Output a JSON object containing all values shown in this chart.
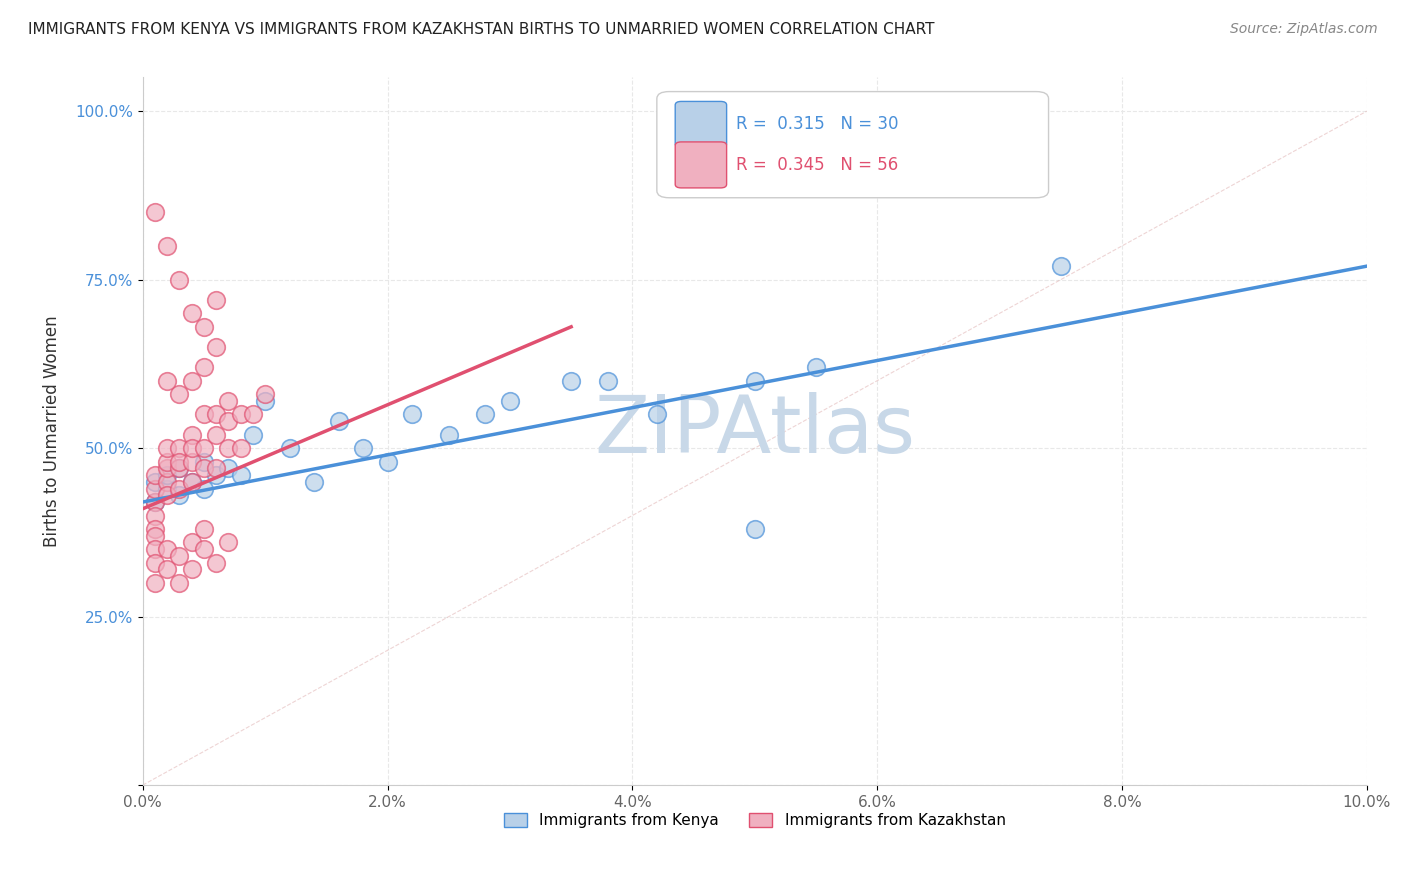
{
  "title": "IMMIGRANTS FROM KENYA VS IMMIGRANTS FROM KAZAKHSTAN BIRTHS TO UNMARRIED WOMEN CORRELATION CHART",
  "source": "Source: ZipAtlas.com",
  "ylabel": "Births to Unmarried Women",
  "legend_label1": "Immigrants from Kenya",
  "legend_label2": "Immigrants from Kazakhstan",
  "R1": 0.315,
  "N1": 30,
  "R2": 0.345,
  "N2": 56,
  "color1": "#b8d0e8",
  "color2": "#f0b0c0",
  "line_color1": "#4a90d9",
  "line_color2": "#e05070",
  "xlim": [
    0.0,
    0.1
  ],
  "ylim": [
    0.0,
    1.05
  ],
  "xticks": [
    0.0,
    0.02,
    0.04,
    0.06,
    0.08,
    0.1
  ],
  "xtick_labels": [
    "0.0%",
    "2.0%",
    "4.0%",
    "6.0%",
    "8.0%",
    "10.0%"
  ],
  "yticks": [
    0.0,
    0.25,
    0.5,
    0.75,
    1.0
  ],
  "ytick_labels": [
    "",
    "25.0%",
    "50.0%",
    "75.0%",
    "100.0%"
  ],
  "kenya_x": [
    0.001,
    0.001,
    0.002,
    0.002,
    0.003,
    0.003,
    0.004,
    0.005,
    0.005,
    0.006,
    0.007,
    0.008,
    0.009,
    0.01,
    0.012,
    0.014,
    0.016,
    0.018,
    0.02,
    0.022,
    0.025,
    0.028,
    0.03,
    0.035,
    0.038,
    0.042,
    0.05,
    0.055,
    0.075,
    0.05
  ],
  "kenya_y": [
    0.42,
    0.45,
    0.44,
    0.46,
    0.43,
    0.47,
    0.45,
    0.44,
    0.48,
    0.46,
    0.47,
    0.46,
    0.52,
    0.57,
    0.5,
    0.45,
    0.54,
    0.5,
    0.48,
    0.55,
    0.52,
    0.55,
    0.57,
    0.6,
    0.6,
    0.55,
    0.6,
    0.62,
    0.77,
    0.38
  ],
  "kaz_x": [
    0.001,
    0.001,
    0.001,
    0.001,
    0.002,
    0.002,
    0.002,
    0.002,
    0.002,
    0.003,
    0.003,
    0.003,
    0.003,
    0.004,
    0.004,
    0.004,
    0.004,
    0.005,
    0.005,
    0.005,
    0.006,
    0.006,
    0.006,
    0.007,
    0.007,
    0.007,
    0.008,
    0.008,
    0.009,
    0.01,
    0.001,
    0.001,
    0.001,
    0.001,
    0.001,
    0.002,
    0.002,
    0.003,
    0.003,
    0.004,
    0.004,
    0.005,
    0.005,
    0.006,
    0.007,
    0.003,
    0.004,
    0.005,
    0.002,
    0.006,
    0.001,
    0.002,
    0.003,
    0.004,
    0.005,
    0.006
  ],
  "kaz_y": [
    0.42,
    0.44,
    0.46,
    0.4,
    0.45,
    0.47,
    0.43,
    0.48,
    0.5,
    0.47,
    0.5,
    0.44,
    0.48,
    0.45,
    0.48,
    0.52,
    0.5,
    0.5,
    0.55,
    0.47,
    0.52,
    0.55,
    0.47,
    0.54,
    0.5,
    0.57,
    0.55,
    0.5,
    0.55,
    0.58,
    0.38,
    0.37,
    0.35,
    0.33,
    0.3,
    0.35,
    0.32,
    0.34,
    0.3,
    0.36,
    0.32,
    0.35,
    0.38,
    0.33,
    0.36,
    0.58,
    0.6,
    0.62,
    0.6,
    0.65,
    0.85,
    0.8,
    0.75,
    0.7,
    0.68,
    0.72
  ],
  "watermark": "ZIPAtlas",
  "watermark_color": "#c8d8e8",
  "background_color": "#ffffff",
  "grid_color": "#e8e8e8",
  "kenya_line_x": [
    0.0,
    0.1
  ],
  "kenya_line_y": [
    0.42,
    0.77
  ],
  "kaz_line_x": [
    0.0,
    0.035
  ],
  "kaz_line_y": [
    0.41,
    0.68
  ]
}
